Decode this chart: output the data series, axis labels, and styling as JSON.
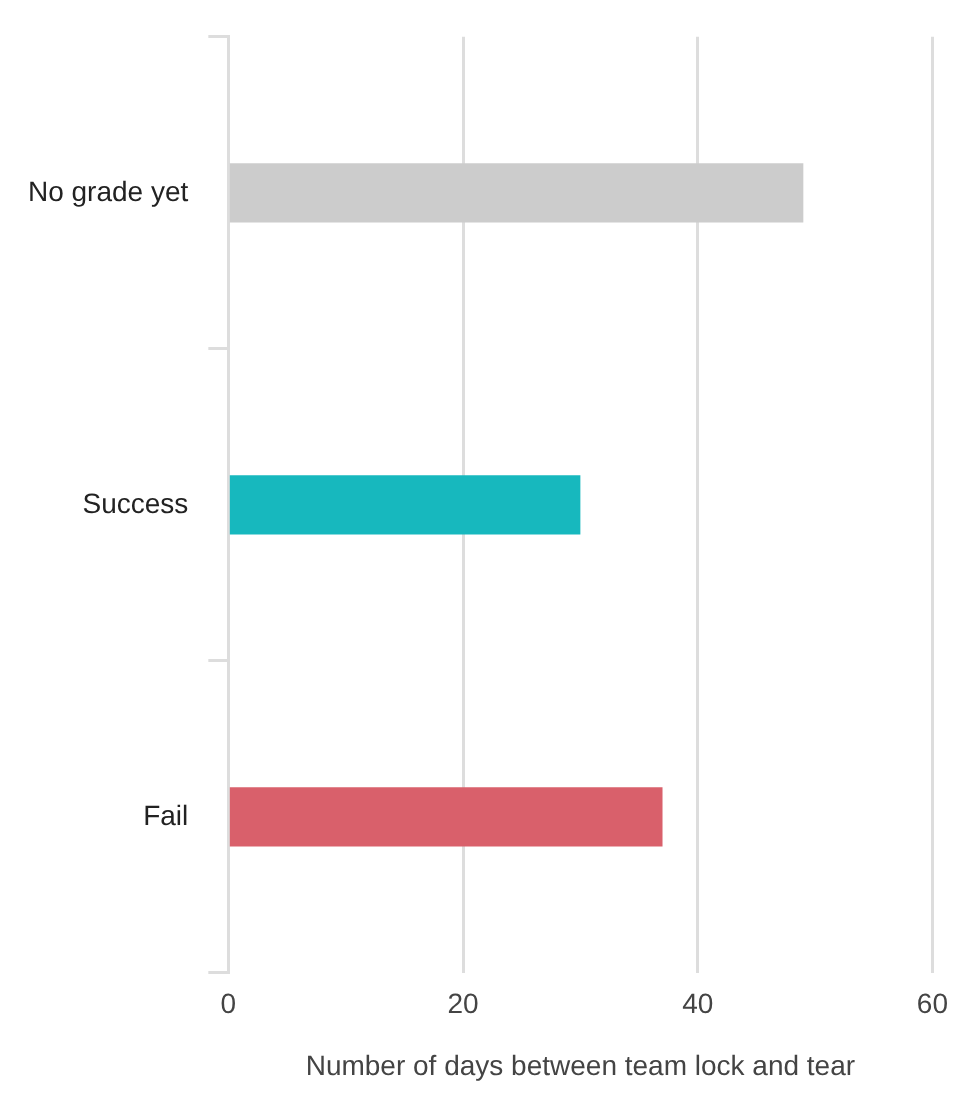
{
  "chart_data": {
    "type": "bar",
    "orientation": "horizontal",
    "categories": [
      "No grade yet",
      "Success",
      "Fail"
    ],
    "values": [
      49,
      30,
      37
    ],
    "colors": [
      "#cccccc",
      "#17b8be",
      "#d9606b"
    ],
    "xlabel": "Number of days between team lock and tear",
    "xlim": [
      0,
      60
    ],
    "xticks": [
      0,
      20,
      40,
      60
    ],
    "grid": "x",
    "legend": false
  }
}
